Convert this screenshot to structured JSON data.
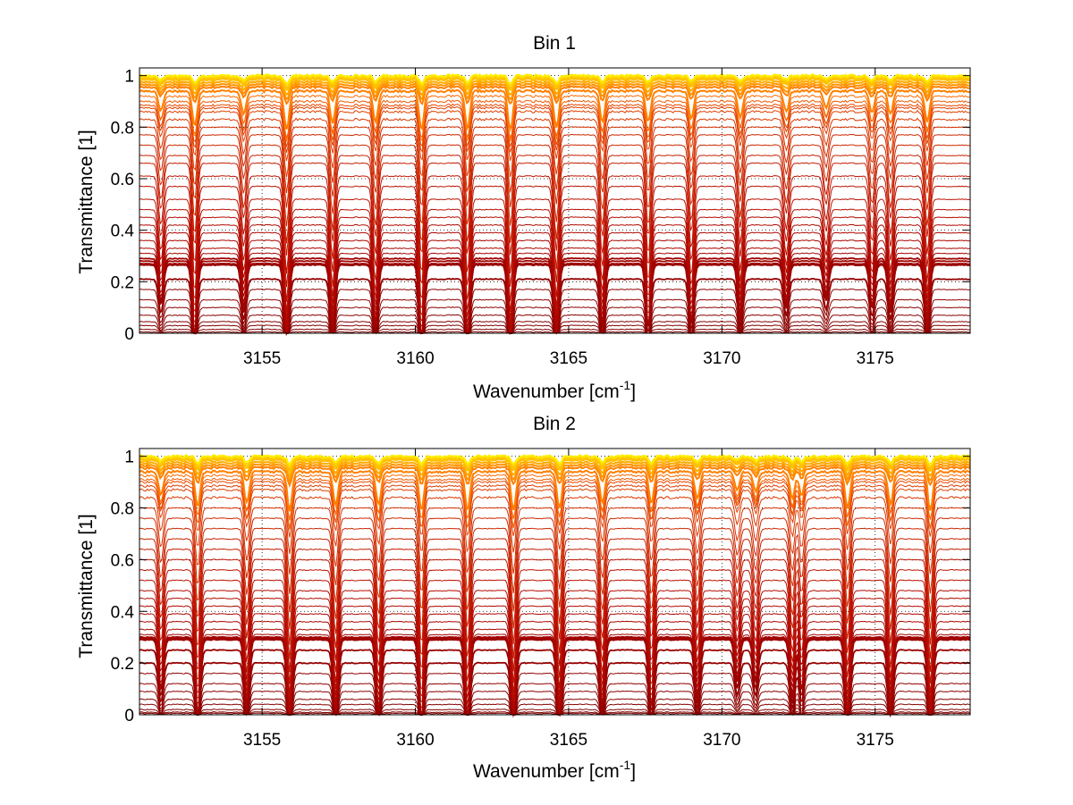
{
  "chart_data": [
    {
      "type": "line",
      "title": "Bin 1",
      "xlabel": "Wavenumber [cm",
      "xlabel_sup": "-1",
      "xlabel_tail": "]",
      "ylabel": "Transmittance [1]",
      "xlim": [
        3151,
        3178.1
      ],
      "ylim": [
        0,
        1.03
      ],
      "xticks": [
        3155,
        3160,
        3165,
        3170,
        3175
      ],
      "yticks": [
        0,
        0.2,
        0.4,
        0.6,
        0.8,
        1
      ],
      "ytick_labels": [
        "0",
        "0.2",
        "0.4",
        "0.6",
        "0.8",
        "1"
      ],
      "grid": "dotted",
      "absorption_lines": [
        3151.7,
        3152.8,
        3154.4,
        3155.8,
        3157.3,
        3158.7,
        3160.2,
        3161.7,
        3163.1,
        3164.6,
        3166.1,
        3167.6,
        3169.0,
        3170.6,
        3172.1,
        3173.4,
        3174.9,
        3175.5,
        3176.7
      ],
      "line_depths": [
        0.5,
        0.9,
        0.6,
        1.0,
        0.85,
        0.8,
        1.0,
        1.0,
        1.0,
        0.95,
        0.8,
        0.8,
        0.75,
        0.7,
        0.55,
        0.45,
        0.55,
        0.6,
        0.8
      ],
      "baselines": [
        1.0,
        0.995,
        0.99,
        0.985,
        0.975,
        0.965,
        0.955,
        0.94,
        0.92,
        0.9,
        0.885,
        0.875,
        0.86,
        0.83,
        0.8,
        0.77,
        0.73,
        0.69,
        0.66,
        0.61,
        0.57,
        0.52,
        0.48,
        0.45,
        0.42,
        0.39,
        0.36,
        0.33,
        0.31,
        0.29,
        0.28,
        0.27,
        0.265,
        0.21,
        0.17,
        0.13,
        0.1,
        0.07,
        0.045,
        0.03,
        0.015,
        0.005
      ],
      "colors": [
        "#ffee00",
        "#ffd400",
        "#ffc000",
        "#ffaa00",
        "#ff9400",
        "#ff8000",
        "#ff6a00",
        "#f05a00",
        "#e64a00",
        "#e04000",
        "#db3800",
        "#d63000",
        "#cc2800",
        "#c82000",
        "#c41a00",
        "#c01400",
        "#bb1000",
        "#b80c00",
        "#b40a00",
        "#b00800",
        "#ac0600",
        "#a80500",
        "#a40400",
        "#a00300",
        "#9c0200",
        "#980200",
        "#940100",
        "#900100",
        "#8c0100",
        "#880000",
        "#840000",
        "#800000",
        "#7c0000"
      ]
    },
    {
      "type": "line",
      "title": "Bin 2",
      "xlabel": "Wavenumber [cm",
      "xlabel_sup": "-1",
      "xlabel_tail": "]",
      "ylabel": "Transmittance [1]",
      "xlim": [
        3151,
        3178.1
      ],
      "ylim": [
        0,
        1.03
      ],
      "xticks": [
        3155,
        3160,
        3165,
        3170,
        3175
      ],
      "yticks": [
        0,
        0.2,
        0.4,
        0.6,
        0.8,
        1
      ],
      "ytick_labels": [
        "0",
        "0.2",
        "0.4",
        "0.6",
        "0.8",
        "1"
      ],
      "grid": "dotted",
      "absorption_lines": [
        3151.7,
        3152.9,
        3154.5,
        3155.9,
        3157.4,
        3158.8,
        3160.2,
        3161.7,
        3163.2,
        3164.7,
        3166.1,
        3167.7,
        3169.2,
        3170.5,
        3171.1,
        3172.3,
        3172.6,
        3174.1,
        3175.5,
        3176.8
      ],
      "line_depths": [
        0.6,
        0.9,
        0.8,
        1.0,
        0.9,
        0.85,
        1.0,
        1.0,
        1.0,
        0.95,
        0.8,
        0.8,
        0.7,
        0.5,
        0.5,
        0.7,
        0.6,
        0.95,
        0.85,
        1.0
      ],
      "baselines": [
        1.0,
        0.995,
        0.99,
        0.985,
        0.975,
        0.965,
        0.955,
        0.94,
        0.925,
        0.91,
        0.9,
        0.885,
        0.87,
        0.84,
        0.8,
        0.76,
        0.72,
        0.68,
        0.64,
        0.6,
        0.56,
        0.52,
        0.48,
        0.45,
        0.42,
        0.39,
        0.36,
        0.33,
        0.31,
        0.3,
        0.295,
        0.29,
        0.25,
        0.2,
        0.16,
        0.12,
        0.09,
        0.06,
        0.04,
        0.02,
        0.01,
        0.005
      ],
      "colors": [
        "#ffee00",
        "#ffd400",
        "#ffc000",
        "#ffaa00",
        "#ff9400",
        "#ff8000",
        "#ff6a00",
        "#f05a00",
        "#e64a00",
        "#e04000",
        "#db3800",
        "#d63000",
        "#cc2800",
        "#c82000",
        "#c41a00",
        "#c01400",
        "#bb1000",
        "#b80c00",
        "#b40a00",
        "#b00800",
        "#ac0600",
        "#a80500",
        "#a40400",
        "#a00300",
        "#9c0200",
        "#980200",
        "#940100",
        "#900100",
        "#8c0100",
        "#880000",
        "#840000",
        "#800000",
        "#7c0000"
      ]
    }
  ]
}
